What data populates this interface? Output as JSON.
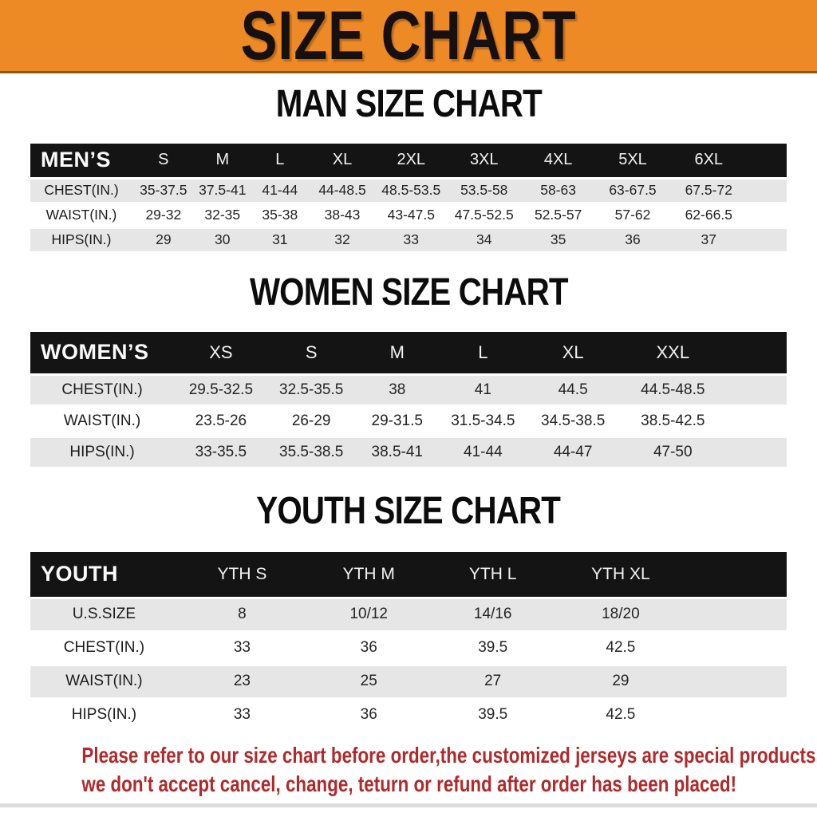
{
  "banner": {
    "title": "SIZE CHART"
  },
  "sections": [
    {
      "id": "men",
      "heading": "MAN SIZE CHART",
      "table": {
        "header_label": "MEN’S",
        "columns": [
          "S",
          "M",
          "L",
          "XL",
          "2XL",
          "3XL",
          "4XL",
          "5XL",
          "6XL"
        ],
        "rows": [
          {
            "label": "CHEST(IN.)",
            "values": [
              "35-37.5",
              "37.5-41",
              "41-44",
              "44-48.5",
              "48.5-53.5",
              "53.5-58",
              "58-63",
              "63-67.5",
              "67.5-72"
            ]
          },
          {
            "label": "WAIST(IN.)",
            "values": [
              "29-32",
              "32-35",
              "35-38",
              "38-43",
              "43-47.5",
              "47.5-52.5",
              "52.5-57",
              "57-62",
              "62-66.5"
            ]
          },
          {
            "label": "HIPS(IN.)",
            "values": [
              "29",
              "30",
              "31",
              "32",
              "33",
              "34",
              "35",
              "36",
              "37"
            ]
          }
        ]
      }
    },
    {
      "id": "women",
      "heading": "WOMEN SIZE CHART",
      "table": {
        "header_label": "WOMEN’S",
        "columns": [
          "XS",
          "S",
          "M",
          "L",
          "XL",
          "XXL"
        ],
        "rows": [
          {
            "label": "CHEST(IN.)",
            "values": [
              "29.5-32.5",
              "32.5-35.5",
              "38",
              "41",
              "44.5",
              "44.5-48.5"
            ]
          },
          {
            "label": "WAIST(IN.)",
            "values": [
              "23.5-26",
              "26-29",
              "29-31.5",
              "31.5-34.5",
              "34.5-38.5",
              "38.5-42.5"
            ]
          },
          {
            "label": "HIPS(IN.)",
            "values": [
              "33-35.5",
              "35.5-38.5",
              "38.5-41",
              "41-44",
              "44-47",
              "47-50"
            ]
          }
        ]
      }
    },
    {
      "id": "youth",
      "heading": "YOUTH SIZE CHART",
      "table": {
        "header_label": "YOUTH",
        "columns": [
          "YTH S",
          "YTH M",
          "YTH L",
          "YTH XL"
        ],
        "rows": [
          {
            "label": "U.S.SIZE",
            "values": [
              "8",
              "10/12",
              "14/16",
              "18/20"
            ]
          },
          {
            "label": "CHEST(IN.)",
            "values": [
              "33",
              "36",
              "39.5",
              "42.5"
            ]
          },
          {
            "label": "WAIST(IN.)",
            "values": [
              "23",
              "25",
              "27",
              "29"
            ]
          },
          {
            "label": "HIPS(IN.)",
            "values": [
              "33",
              "36",
              "39.5",
              "42.5"
            ]
          }
        ]
      }
    }
  ],
  "footer": {
    "line1": "Please refer to our size chart before order,the customized jerseys are special products,",
    "line2": "we don't accept cancel, change, teturn or refund after order has been placed!"
  },
  "colors": {
    "banner_bg": "#ee8a25",
    "bar_bg": "#141414",
    "row_alt": "#e6e6e6",
    "notice": "#b02a2c",
    "heading": "#0c0c0c"
  }
}
